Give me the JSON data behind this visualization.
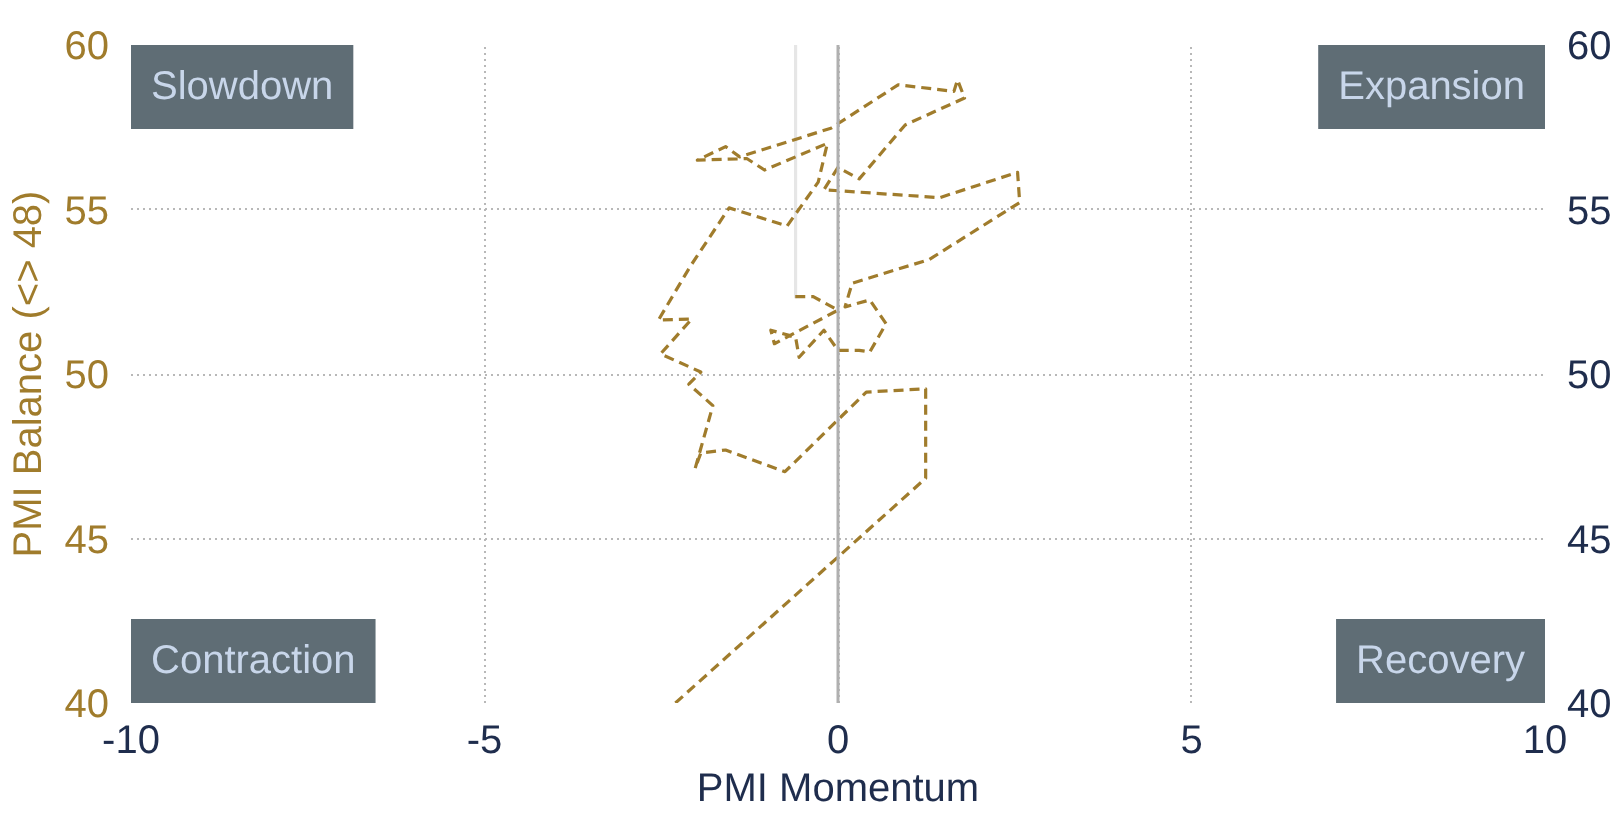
{
  "chart_data": {
    "type": "line",
    "xlabel": "PMI Momentum",
    "ylabel": "PMI Balance (<> 48)",
    "xlim": [
      -10,
      10
    ],
    "xticks": [
      -10,
      -5,
      0,
      5,
      10
    ],
    "ylim": [
      40,
      60
    ],
    "yticks": [
      40,
      45,
      50,
      55,
      60
    ],
    "y2lim": [
      40,
      60
    ],
    "y2ticks": [
      40,
      45,
      50,
      55,
      60
    ],
    "grid": true,
    "marker": "none",
    "ref_lines": [
      {
        "axis": "x",
        "value": 0,
        "color": "#b0b0b0"
      }
    ],
    "annotations": [
      "Slowdown",
      "Expansion",
      "Contraction",
      "Recovery"
    ],
    "series": [
      {
        "color": "#e6e6e6",
        "line_style": "solid",
        "x": [
          -0.6,
          -0.6
        ],
        "values": [
          60,
          52.3
        ]
      },
      {
        "color": "#a07c2c",
        "line_style": "dashed",
        "x": [
          -2.3,
          1.24,
          1.24,
          0.4,
          -0.75,
          -1.59,
          -1.94,
          -2.02,
          -1.77,
          -2.11,
          -1.94,
          -2.51,
          -2.07,
          -2.54,
          -2.09,
          -1.54,
          -0.72,
          -0.28,
          -0.15,
          -1.04,
          -1.29,
          -1.99,
          -1.59,
          -1.39,
          -0.1,
          0.85,
          1.64,
          1.69,
          1.79,
          0.95,
          0.3,
          0,
          -0.2,
          1.44,
          2.54,
          2.57,
          1.29,
          0.2,
          0.1,
          0.45,
          0.68,
          0.45,
          0.3,
          0,
          -0.2,
          -0.55,
          -0.6,
          -0.95,
          -0.9,
          0,
          -0.35,
          -0.67
        ],
        "values": [
          40,
          46.83,
          49.55,
          49.45,
          47.03,
          47.69,
          47.6,
          47.13,
          49.04,
          49.69,
          50.06,
          50.61,
          51.67,
          51.64,
          53.27,
          55.05,
          54.5,
          55.83,
          57.01,
          56.2,
          56.55,
          56.5,
          56.91,
          56.6,
          57.47,
          58.79,
          58.59,
          58.94,
          58.39,
          57.57,
          55.93,
          56.28,
          55.6,
          55.36,
          56.13,
          55.21,
          53.48,
          52.76,
          52.04,
          52.25,
          51.53,
          50.67,
          50.72,
          50.72,
          51.33,
          50.51,
          51.12,
          51.33,
          50.92,
          51.94,
          52.35,
          52.35
        ]
      }
    ]
  }
}
